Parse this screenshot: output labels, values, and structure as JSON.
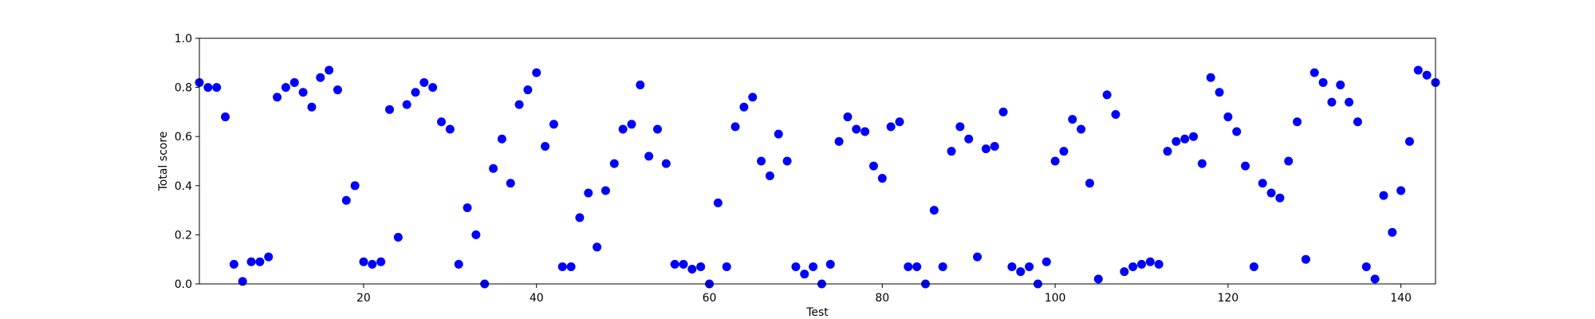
{
  "chart_data": {
    "type": "scatter",
    "xlabel": "Test",
    "ylabel": "Total score",
    "xlim": [
      1,
      144
    ],
    "ylim": [
      0.0,
      1.0
    ],
    "grid": false,
    "marker_color": "#0000ff",
    "xticks": [
      20,
      40,
      60,
      80,
      100,
      120,
      140
    ],
    "xtick_labels": [
      "20",
      "40",
      "60",
      "80",
      "100",
      "120",
      "140"
    ],
    "yticks": [
      0.0,
      0.2,
      0.4,
      0.6,
      0.8,
      1.0
    ],
    "ytick_labels": [
      "0.0",
      "0.2",
      "0.4",
      "0.6",
      "0.8",
      "1.0"
    ],
    "points": [
      [
        1,
        0.82
      ],
      [
        2,
        0.8
      ],
      [
        3,
        0.8
      ],
      [
        4,
        0.68
      ],
      [
        5,
        0.08
      ],
      [
        6,
        0.01
      ],
      [
        7,
        0.09
      ],
      [
        8,
        0.09
      ],
      [
        9,
        0.11
      ],
      [
        10,
        0.76
      ],
      [
        11,
        0.8
      ],
      [
        12,
        0.82
      ],
      [
        13,
        0.78
      ],
      [
        14,
        0.72
      ],
      [
        15,
        0.84
      ],
      [
        16,
        0.87
      ],
      [
        17,
        0.79
      ],
      [
        18,
        0.34
      ],
      [
        19,
        0.4
      ],
      [
        20,
        0.09
      ],
      [
        21,
        0.08
      ],
      [
        22,
        0.09
      ],
      [
        23,
        0.71
      ],
      [
        24,
        0.19
      ],
      [
        25,
        0.73
      ],
      [
        26,
        0.78
      ],
      [
        27,
        0.82
      ],
      [
        28,
        0.8
      ],
      [
        29,
        0.66
      ],
      [
        30,
        0.63
      ],
      [
        31,
        0.08
      ],
      [
        32,
        0.31
      ],
      [
        33,
        0.2
      ],
      [
        34,
        0.0
      ],
      [
        35,
        0.47
      ],
      [
        36,
        0.59
      ],
      [
        37,
        0.41
      ],
      [
        38,
        0.73
      ],
      [
        39,
        0.79
      ],
      [
        40,
        0.86
      ],
      [
        41,
        0.56
      ],
      [
        42,
        0.65
      ],
      [
        43,
        0.07
      ],
      [
        44,
        0.07
      ],
      [
        45,
        0.27
      ],
      [
        46,
        0.37
      ],
      [
        47,
        0.15
      ],
      [
        48,
        0.38
      ],
      [
        49,
        0.49
      ],
      [
        50,
        0.63
      ],
      [
        51,
        0.65
      ],
      [
        52,
        0.81
      ],
      [
        53,
        0.52
      ],
      [
        54,
        0.63
      ],
      [
        55,
        0.49
      ],
      [
        56,
        0.08
      ],
      [
        57,
        0.08
      ],
      [
        58,
        0.06
      ],
      [
        59,
        0.07
      ],
      [
        60,
        0.0
      ],
      [
        61,
        0.33
      ],
      [
        62,
        0.07
      ],
      [
        63,
        0.64
      ],
      [
        64,
        0.72
      ],
      [
        65,
        0.76
      ],
      [
        66,
        0.5
      ],
      [
        67,
        0.44
      ],
      [
        68,
        0.61
      ],
      [
        69,
        0.5
      ],
      [
        70,
        0.07
      ],
      [
        71,
        0.04
      ],
      [
        72,
        0.07
      ],
      [
        73,
        0.0
      ],
      [
        74,
        0.08
      ],
      [
        75,
        0.58
      ],
      [
        76,
        0.68
      ],
      [
        77,
        0.63
      ],
      [
        78,
        0.62
      ],
      [
        79,
        0.48
      ],
      [
        80,
        0.43
      ],
      [
        81,
        0.64
      ],
      [
        82,
        0.66
      ],
      [
        83,
        0.07
      ],
      [
        84,
        0.07
      ],
      [
        85,
        0.0
      ],
      [
        86,
        0.3
      ],
      [
        87,
        0.07
      ],
      [
        88,
        0.54
      ],
      [
        89,
        0.64
      ],
      [
        90,
        0.59
      ],
      [
        91,
        0.11
      ],
      [
        92,
        0.55
      ],
      [
        93,
        0.56
      ],
      [
        94,
        0.7
      ],
      [
        95,
        0.07
      ],
      [
        96,
        0.05
      ],
      [
        97,
        0.07
      ],
      [
        98,
        0.0
      ],
      [
        99,
        0.09
      ],
      [
        100,
        0.5
      ],
      [
        101,
        0.54
      ],
      [
        102,
        0.67
      ],
      [
        103,
        0.63
      ],
      [
        104,
        0.41
      ],
      [
        105,
        0.02
      ],
      [
        106,
        0.77
      ],
      [
        107,
        0.69
      ],
      [
        108,
        0.05
      ],
      [
        109,
        0.07
      ],
      [
        110,
        0.08
      ],
      [
        111,
        0.09
      ],
      [
        112,
        0.08
      ],
      [
        113,
        0.54
      ],
      [
        114,
        0.58
      ],
      [
        115,
        0.59
      ],
      [
        116,
        0.6
      ],
      [
        117,
        0.49
      ],
      [
        118,
        0.84
      ],
      [
        119,
        0.78
      ],
      [
        120,
        0.68
      ],
      [
        121,
        0.62
      ],
      [
        122,
        0.48
      ],
      [
        123,
        0.07
      ],
      [
        124,
        0.41
      ],
      [
        125,
        0.37
      ],
      [
        126,
        0.35
      ],
      [
        127,
        0.5
      ],
      [
        128,
        0.66
      ],
      [
        129,
        0.1
      ],
      [
        130,
        0.86
      ],
      [
        131,
        0.82
      ],
      [
        132,
        0.74
      ],
      [
        133,
        0.81
      ],
      [
        134,
        0.74
      ],
      [
        135,
        0.66
      ],
      [
        136,
        0.07
      ],
      [
        137,
        0.02
      ],
      [
        138,
        0.36
      ],
      [
        139,
        0.21
      ],
      [
        140,
        0.38
      ],
      [
        141,
        0.58
      ],
      [
        142,
        0.87
      ],
      [
        143,
        0.85
      ],
      [
        144,
        0.82
      ]
    ]
  }
}
